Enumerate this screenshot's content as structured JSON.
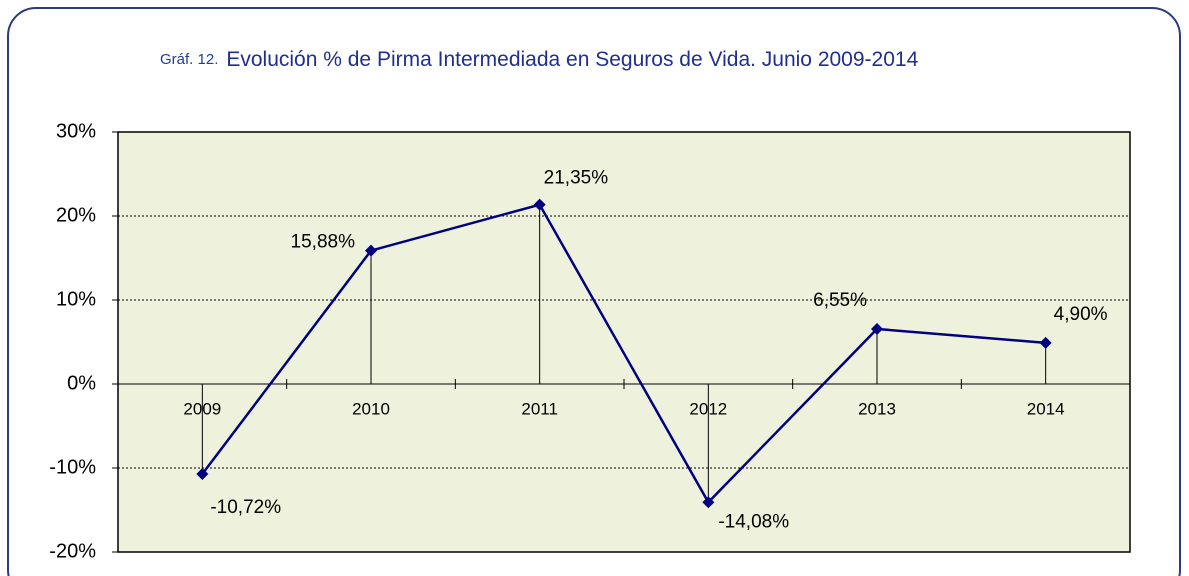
{
  "chart_data": {
    "type": "line",
    "figure_label": "Gráf. 12.",
    "title": "Evolución % de Pirma Intermediada en Seguros de Vida. Junio 2009-2014",
    "categories": [
      "2009",
      "2010",
      "2011",
      "2012",
      "2013",
      "2014"
    ],
    "values": [
      -10.72,
      15.88,
      21.35,
      -14.08,
      6.55,
      4.9
    ],
    "value_labels": [
      "-10,72%",
      "15,88%",
      "21,35%",
      "-14,08%",
      "6,55%",
      "4,90%"
    ],
    "color": "#000080",
    "ylim": [
      -20,
      30
    ],
    "yticks": [
      {
        "value": 30,
        "label": "30%"
      },
      {
        "value": 20,
        "label": "20%"
      },
      {
        "value": 10,
        "label": "10%"
      },
      {
        "value": 0,
        "label": "0%"
      },
      {
        "value": -10,
        "label": "-10%"
      },
      {
        "value": -20,
        "label": "-20%"
      }
    ],
    "grid": true
  }
}
